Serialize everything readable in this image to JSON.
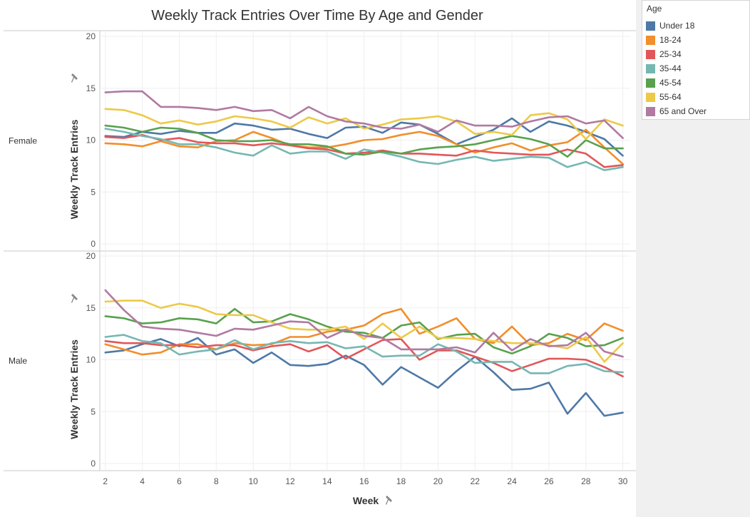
{
  "chart_data": {
    "type": "line",
    "title": "Weekly Track Entries Over Time By Age and Gender",
    "xlabel": "Week",
    "ylabel": "Weekly Track Entries",
    "xlim": [
      1.7,
      30.4
    ],
    "ylim": [
      0,
      20
    ],
    "x_ticks": [
      "2",
      "4",
      "6",
      "8",
      "10",
      "12",
      "14",
      "16",
      "18",
      "20",
      "22",
      "24",
      "26",
      "28",
      "30"
    ],
    "y_ticks": [
      "0",
      "5",
      "10",
      "15",
      "20"
    ],
    "legend_title": "Age",
    "legend_position": "top-right",
    "grid": true,
    "x": [
      2,
      3,
      4,
      5,
      6,
      7,
      8,
      9,
      10,
      11,
      12,
      13,
      14,
      15,
      16,
      17,
      18,
      19,
      20,
      21,
      22,
      23,
      24,
      25,
      26,
      27,
      28,
      29,
      30
    ],
    "panels": [
      {
        "label": "Female",
        "series": [
          {
            "name": "Under 18",
            "color": "#4e79a7",
            "values": [
              10.4,
              10.3,
              10.8,
              10.6,
              10.9,
              10.7,
              10.7,
              11.6,
              11.4,
              11.0,
              11.1,
              10.6,
              10.2,
              11.2,
              11.3,
              10.7,
              11.7,
              11.5,
              10.6,
              9.6,
              10.3,
              11.0,
              12.1,
              10.8,
              11.8,
              11.4,
              10.8,
              10.1,
              8.5
            ]
          },
          {
            "name": "18-24",
            "color": "#f28e2b",
            "values": [
              9.7,
              9.6,
              9.4,
              9.9,
              9.4,
              9.3,
              9.9,
              10.0,
              10.8,
              10.2,
              9.5,
              9.3,
              9.3,
              9.6,
              10.0,
              10.1,
              10.5,
              10.8,
              10.4,
              9.6,
              8.8,
              9.3,
              9.7,
              9.0,
              9.5,
              9.8,
              11.0,
              9.3,
              7.7
            ]
          },
          {
            "name": "25-34",
            "color": "#e15759",
            "values": [
              10.3,
              10.2,
              10.5,
              10.0,
              10.2,
              9.8,
              9.7,
              9.7,
              9.5,
              9.7,
              9.5,
              9.2,
              9.1,
              8.7,
              8.8,
              9.0,
              8.7,
              8.7,
              8.6,
              8.5,
              9.0,
              8.8,
              8.7,
              8.6,
              8.6,
              9.1,
              8.7,
              7.4,
              7.6
            ]
          },
          {
            "name": "35-44",
            "color": "#76b7b2",
            "values": [
              11.1,
              10.8,
              10.4,
              10.1,
              9.6,
              9.6,
              9.3,
              8.8,
              8.5,
              9.5,
              8.7,
              8.9,
              8.9,
              8.2,
              9.1,
              8.8,
              8.4,
              7.9,
              7.7,
              8.1,
              8.4,
              8.0,
              8.2,
              8.4,
              8.3,
              7.4,
              7.9,
              7.1,
              7.4
            ]
          },
          {
            "name": "45-54",
            "color": "#59a14f",
            "values": [
              11.4,
              11.2,
              10.8,
              11.2,
              11.1,
              10.7,
              10.0,
              9.9,
              9.9,
              10.0,
              9.6,
              9.6,
              9.4,
              8.7,
              8.6,
              8.9,
              8.7,
              9.1,
              9.3,
              9.4,
              9.6,
              10.0,
              10.4,
              10.1,
              9.6,
              8.4,
              10.0,
              9.2,
              9.2
            ]
          },
          {
            "name": "55-64",
            "color": "#edc948",
            "values": [
              13.0,
              12.9,
              12.4,
              11.6,
              11.9,
              11.5,
              11.8,
              12.3,
              12.1,
              11.8,
              11.2,
              12.2,
              11.6,
              12.1,
              11.1,
              11.5,
              12.0,
              12.1,
              12.3,
              11.8,
              10.6,
              10.8,
              10.5,
              12.4,
              12.6,
              12.0,
              10.1,
              12.0,
              11.4
            ]
          },
          {
            "name": "65 and Over",
            "color": "#b07aa1",
            "values": [
              14.6,
              14.7,
              14.7,
              13.2,
              13.2,
              13.1,
              12.9,
              13.2,
              12.8,
              12.9,
              12.1,
              13.2,
              12.3,
              11.8,
              11.6,
              11.2,
              11.1,
              11.5,
              10.8,
              11.9,
              11.4,
              11.4,
              11.3,
              11.8,
              12.2,
              12.3,
              11.6,
              11.9,
              10.2
            ]
          }
        ]
      },
      {
        "label": "Male",
        "series": [
          {
            "name": "Under 18",
            "color": "#4e79a7",
            "values": [
              10.7,
              10.9,
              11.5,
              12.0,
              11.3,
              12.1,
              10.5,
              11.0,
              9.7,
              10.7,
              9.5,
              9.4,
              9.6,
              10.4,
              9.5,
              7.6,
              9.3,
              8.3,
              7.3,
              8.9,
              10.3,
              8.8,
              7.1,
              7.2,
              7.8,
              4.8,
              6.8,
              4.6,
              4.9
            ]
          },
          {
            "name": "18-24",
            "color": "#f28e2b",
            "values": [
              11.5,
              11.0,
              10.5,
              10.7,
              11.5,
              11.5,
              11.0,
              11.6,
              11.4,
              11.5,
              12.2,
              12.2,
              12.7,
              12.9,
              13.3,
              14.4,
              14.9,
              12.5,
              13.2,
              14.0,
              12.0,
              11.6,
              13.2,
              11.4,
              11.6,
              12.5,
              11.9,
              13.5,
              12.8
            ]
          },
          {
            "name": "25-34",
            "color": "#e15759",
            "values": [
              11.8,
              11.6,
              11.6,
              11.4,
              11.4,
              11.2,
              11.4,
              11.4,
              10.9,
              11.3,
              11.5,
              10.8,
              11.4,
              10.1,
              11.0,
              11.9,
              12.0,
              10.0,
              10.9,
              10.9,
              10.3,
              9.7,
              8.9,
              9.5,
              10.1,
              10.1,
              10.0,
              9.3,
              8.4
            ]
          },
          {
            "name": "35-44",
            "color": "#76b7b2",
            "values": [
              12.2,
              12.4,
              11.8,
              11.6,
              10.5,
              10.8,
              11.0,
              11.9,
              11.0,
              11.6,
              11.8,
              11.6,
              11.7,
              11.1,
              11.3,
              10.3,
              10.4,
              10.4,
              11.5,
              10.8,
              9.7,
              9.8,
              9.8,
              8.7,
              8.7,
              9.4,
              9.6,
              8.9,
              8.8
            ]
          },
          {
            "name": "45-54",
            "color": "#59a14f",
            "values": [
              14.2,
              14.0,
              13.5,
              13.6,
              14.0,
              13.9,
              13.5,
              14.9,
              13.6,
              13.7,
              14.4,
              13.9,
              13.2,
              12.7,
              12.6,
              12.1,
              13.3,
              13.6,
              12.0,
              12.4,
              12.5,
              11.2,
              10.6,
              11.3,
              12.5,
              12.1,
              11.3,
              11.4,
              12.1
            ]
          },
          {
            "name": "55-64",
            "color": "#edc948",
            "values": [
              15.6,
              15.7,
              15.7,
              15.0,
              15.4,
              15.1,
              14.4,
              14.3,
              14.3,
              13.6,
              13.0,
              12.9,
              12.9,
              13.2,
              12.0,
              13.5,
              12.1,
              13.2,
              12.1,
              12.1,
              12.0,
              11.8,
              11.6,
              11.6,
              11.4,
              11.1,
              12.2,
              9.8,
              11.6
            ]
          },
          {
            "name": "65 and Over",
            "color": "#b07aa1",
            "values": [
              16.7,
              14.8,
              13.2,
              13.0,
              12.9,
              12.6,
              12.3,
              13.0,
              12.9,
              13.3,
              13.7,
              13.6,
              12.1,
              12.9,
              12.3,
              12.1,
              11.0,
              11.0,
              11.0,
              11.2,
              10.7,
              12.6,
              10.9,
              12.0,
              11.3,
              11.4,
              12.6,
              10.8,
              10.3
            ]
          }
        ]
      }
    ]
  }
}
